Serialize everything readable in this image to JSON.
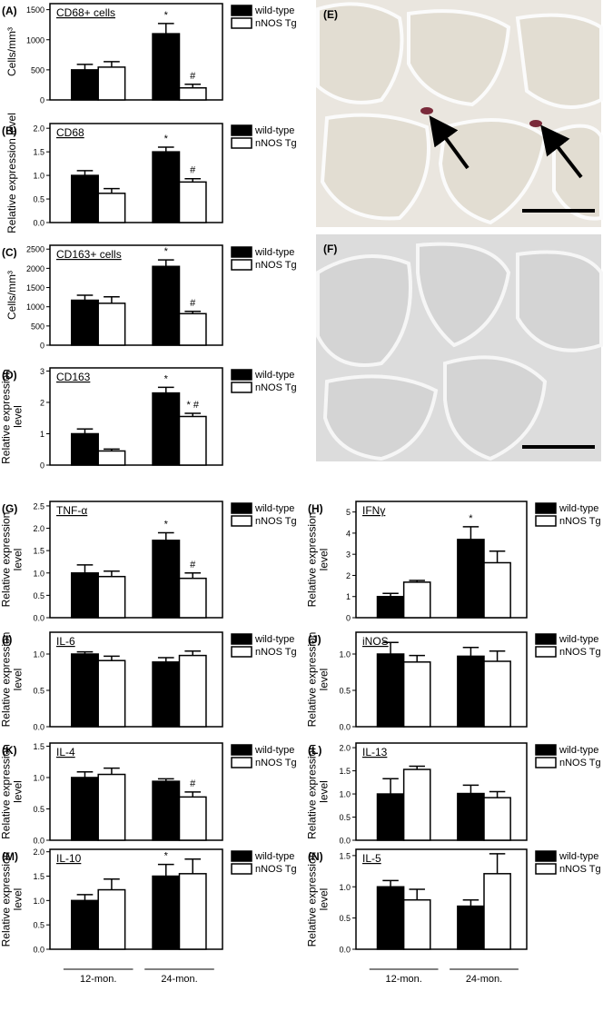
{
  "chart_data": [
    {
      "panel": "(A)",
      "type": "bar",
      "title": "CD68+ cells",
      "ylabel": [
        "Cells/mm³"
      ],
      "categories": [
        null,
        null
      ],
      "ylim": [
        0,
        1600
      ],
      "yticks": [
        0,
        500,
        1000,
        1500
      ],
      "series": [
        {
          "name": "wild-type",
          "color": "#000000",
          "values": [
            500,
            1100
          ],
          "errors": [
            90,
            170
          ],
          "markers": [
            null,
            "*"
          ]
        },
        {
          "name": "nNOS Tg",
          "color": "#ffffff",
          "values": [
            545,
            200
          ],
          "errors": [
            90,
            60
          ],
          "markers": [
            null,
            "#"
          ]
        }
      ]
    },
    {
      "panel": "(B)",
      "type": "bar",
      "title": "CD68",
      "ylabel": [
        "Relative expression level"
      ],
      "categories": [
        null,
        null
      ],
      "ylim": [
        0,
        2.1
      ],
      "yticks": [
        {
          "value": 0,
          "label": "0.0"
        },
        {
          "value": 0.5,
          "label": "0.5"
        },
        {
          "value": 1,
          "label": "1.0"
        },
        {
          "value": 1.5,
          "label": "1.5"
        },
        {
          "value": 2,
          "label": "2.0"
        }
      ],
      "series": [
        {
          "name": "wild-type",
          "color": "#000000",
          "values": [
            1.0,
            1.5
          ],
          "errors": [
            0.1,
            0.1
          ],
          "markers": [
            null,
            "*"
          ]
        },
        {
          "name": "nNOS Tg",
          "color": "#ffffff",
          "values": [
            0.62,
            0.86
          ],
          "errors": [
            0.1,
            0.07
          ],
          "markers": [
            null,
            "#"
          ]
        }
      ]
    },
    {
      "panel": "(C)",
      "type": "bar",
      "title": "CD163+ cells",
      "ylabel": [
        "Cells/mm³"
      ],
      "categories": [
        null,
        null
      ],
      "ylim": [
        0,
        2600
      ],
      "yticks": [
        0,
        500,
        1000,
        1500,
        2000,
        2500
      ],
      "series": [
        {
          "name": "wild-type",
          "color": "#000000",
          "values": [
            1170,
            2050
          ],
          "errors": [
            130,
            170
          ],
          "markers": [
            null,
            "*"
          ]
        },
        {
          "name": "nNOS Tg",
          "color": "#ffffff",
          "values": [
            1090,
            820
          ],
          "errors": [
            170,
            60
          ],
          "markers": [
            null,
            "#"
          ]
        }
      ]
    },
    {
      "panel": "(D)",
      "type": "bar",
      "title": "CD163",
      "ylabel": [
        "Relative expression",
        "level"
      ],
      "categories": [
        null,
        null
      ],
      "ylim": [
        0,
        3.1
      ],
      "yticks": [
        0,
        1,
        2,
        3
      ],
      "series": [
        {
          "name": "wild-type",
          "color": "#000000",
          "values": [
            1.0,
            2.3
          ],
          "errors": [
            0.15,
            0.18
          ],
          "markers": [
            null,
            "*"
          ]
        },
        {
          "name": "nNOS Tg",
          "color": "#ffffff",
          "values": [
            0.45,
            1.55
          ],
          "errors": [
            0.06,
            0.1
          ],
          "markers": [
            null,
            "* #"
          ]
        }
      ]
    },
    {
      "panel": "(G)",
      "type": "bar",
      "title": "TNF-α",
      "ylabel": [
        "Relative expression",
        "level"
      ],
      "categories": [
        null,
        null
      ],
      "ylim": [
        0,
        2.6
      ],
      "yticks": [
        {
          "value": 0,
          "label": "0.0"
        },
        {
          "value": 0.5,
          "label": "0.5"
        },
        {
          "value": 1,
          "label": "1.0"
        },
        {
          "value": 1.5,
          "label": "1.5"
        },
        {
          "value": 2,
          "label": "2.0"
        },
        {
          "value": 2.5,
          "label": "2.5"
        }
      ],
      "series": [
        {
          "name": "wild-type",
          "color": "#000000",
          "values": [
            1.0,
            1.73
          ],
          "errors": [
            0.18,
            0.17
          ],
          "markers": [
            null,
            "*"
          ]
        },
        {
          "name": "nNOS Tg",
          "color": "#ffffff",
          "values": [
            0.92,
            0.88
          ],
          "errors": [
            0.12,
            0.12
          ],
          "markers": [
            null,
            "#"
          ]
        }
      ]
    },
    {
      "panel": "(H)",
      "type": "bar",
      "title": "IFNγ",
      "ylabel": [
        "Relative expression",
        "level"
      ],
      "categories": [
        null,
        null
      ],
      "ylim": [
        0,
        5.5
      ],
      "yticks": [
        0,
        1,
        2,
        3,
        4,
        5
      ],
      "series": [
        {
          "name": "wild-type",
          "color": "#000000",
          "values": [
            1.0,
            3.7
          ],
          "errors": [
            0.15,
            0.6
          ],
          "markers": [
            null,
            "*"
          ]
        },
        {
          "name": "nNOS Tg",
          "color": "#ffffff",
          "values": [
            1.68,
            2.6
          ],
          "errors": [
            0.08,
            0.55
          ],
          "markers": [
            null,
            null
          ]
        }
      ]
    },
    {
      "panel": "(I)",
      "type": "bar",
      "title": "IL-6",
      "ylabel": [
        "Relative expression",
        "level"
      ],
      "categories": [
        null,
        null
      ],
      "ylim": [
        0,
        1.3
      ],
      "yticks": [
        {
          "value": 0,
          "label": "0.0"
        },
        {
          "value": 0.5,
          "label": "0.5"
        },
        {
          "value": 1,
          "label": "1.0"
        }
      ],
      "series": [
        {
          "name": "wild-type",
          "color": "#000000",
          "values": [
            1.0,
            0.89
          ],
          "errors": [
            0.03,
            0.06
          ],
          "markers": [
            null,
            null
          ]
        },
        {
          "name": "nNOS Tg",
          "color": "#ffffff",
          "values": [
            0.91,
            0.98
          ],
          "errors": [
            0.06,
            0.06
          ],
          "markers": [
            null,
            null
          ]
        }
      ]
    },
    {
      "panel": "(J)",
      "type": "bar",
      "title": "iNOS",
      "ylabel": [
        "Relative expression",
        "level"
      ],
      "categories": [
        null,
        null
      ],
      "ylim": [
        0,
        1.3
      ],
      "yticks": [
        {
          "value": 0,
          "label": "0.0"
        },
        {
          "value": 0.5,
          "label": "0.5"
        },
        {
          "value": 1,
          "label": "1.0"
        }
      ],
      "series": [
        {
          "name": "wild-type",
          "color": "#000000",
          "values": [
            1.0,
            0.97
          ],
          "errors": [
            0.16,
            0.12
          ],
          "markers": [
            null,
            null
          ]
        },
        {
          "name": "nNOS Tg",
          "color": "#ffffff",
          "values": [
            0.89,
            0.9
          ],
          "errors": [
            0.09,
            0.14
          ],
          "markers": [
            null,
            null
          ]
        }
      ]
    },
    {
      "panel": "(K)",
      "type": "bar",
      "title": "IL-4",
      "ylabel": [
        "Relative expression",
        "level"
      ],
      "categories": [
        null,
        null
      ],
      "ylim": [
        0,
        1.55
      ],
      "yticks": [
        {
          "value": 0,
          "label": "0.0"
        },
        {
          "value": 0.5,
          "label": "0.5"
        },
        {
          "value": 1,
          "label": "1.0"
        },
        {
          "value": 1.5,
          "label": "1.5"
        }
      ],
      "series": [
        {
          "name": "wild-type",
          "color": "#000000",
          "values": [
            1.0,
            0.94
          ],
          "errors": [
            0.09,
            0.04
          ],
          "markers": [
            null,
            null
          ]
        },
        {
          "name": "nNOS Tg",
          "color": "#ffffff",
          "values": [
            1.05,
            0.69
          ],
          "errors": [
            0.1,
            0.08
          ],
          "markers": [
            null,
            "#"
          ]
        }
      ]
    },
    {
      "panel": "(L)",
      "type": "bar",
      "title": "IL-13",
      "ylabel": [
        "Relative expression",
        "level"
      ],
      "categories": [
        null,
        null
      ],
      "ylim": [
        0,
        2.1
      ],
      "yticks": [
        {
          "value": 0,
          "label": "0.0"
        },
        {
          "value": 0.5,
          "label": "0.5"
        },
        {
          "value": 1,
          "label": "1.0"
        },
        {
          "value": 1.5,
          "label": "1.5"
        },
        {
          "value": 2,
          "label": "2.0"
        }
      ],
      "series": [
        {
          "name": "wild-type",
          "color": "#000000",
          "values": [
            1.0,
            1.01
          ],
          "errors": [
            0.33,
            0.18
          ],
          "markers": [
            null,
            null
          ]
        },
        {
          "name": "nNOS Tg",
          "color": "#ffffff",
          "values": [
            1.53,
            0.92
          ],
          "errors": [
            0.07,
            0.13
          ],
          "markers": [
            null,
            null
          ]
        }
      ]
    },
    {
      "panel": "(M)",
      "type": "bar",
      "title": "IL-10",
      "ylabel": [
        "Relative expression",
        "level"
      ],
      "categories": [
        "12-mon.",
        "24-mon."
      ],
      "ylim": [
        0,
        2.05
      ],
      "yticks": [
        {
          "value": 0,
          "label": "0.0"
        },
        {
          "value": 0.5,
          "label": "0.5"
        },
        {
          "value": 1,
          "label": "1.0"
        },
        {
          "value": 1.5,
          "label": "1.5"
        },
        {
          "value": 2,
          "label": "2.0"
        }
      ],
      "series": [
        {
          "name": "wild-type",
          "color": "#000000",
          "values": [
            1.0,
            1.5
          ],
          "errors": [
            0.12,
            0.24
          ],
          "markers": [
            null,
            "*"
          ]
        },
        {
          "name": "nNOS Tg",
          "color": "#ffffff",
          "values": [
            1.22,
            1.55
          ],
          "errors": [
            0.22,
            0.3
          ],
          "markers": [
            null,
            null
          ]
        }
      ]
    },
    {
      "panel": "(N)",
      "type": "bar",
      "title": "IL-5",
      "ylabel": [
        "Relative expression",
        "level"
      ],
      "categories": [
        "12-mon.",
        "24-mon."
      ],
      "ylim": [
        0,
        1.6
      ],
      "yticks": [
        {
          "value": 0,
          "label": "0.0"
        },
        {
          "value": 0.5,
          "label": "0.5"
        },
        {
          "value": 1,
          "label": "1.0"
        },
        {
          "value": 1.5,
          "label": "1.5"
        }
      ],
      "series": [
        {
          "name": "wild-type",
          "color": "#000000",
          "values": [
            1.0,
            0.69
          ],
          "errors": [
            0.1,
            0.1
          ],
          "markers": [
            null,
            null
          ]
        },
        {
          "name": "nNOS Tg",
          "color": "#ffffff",
          "values": [
            0.79,
            1.21
          ],
          "errors": [
            0.17,
            0.32
          ],
          "markers": [
            null,
            null
          ]
        }
      ]
    }
  ],
  "images": [
    {
      "label": "(E)"
    },
    {
      "label": "(F)"
    }
  ]
}
